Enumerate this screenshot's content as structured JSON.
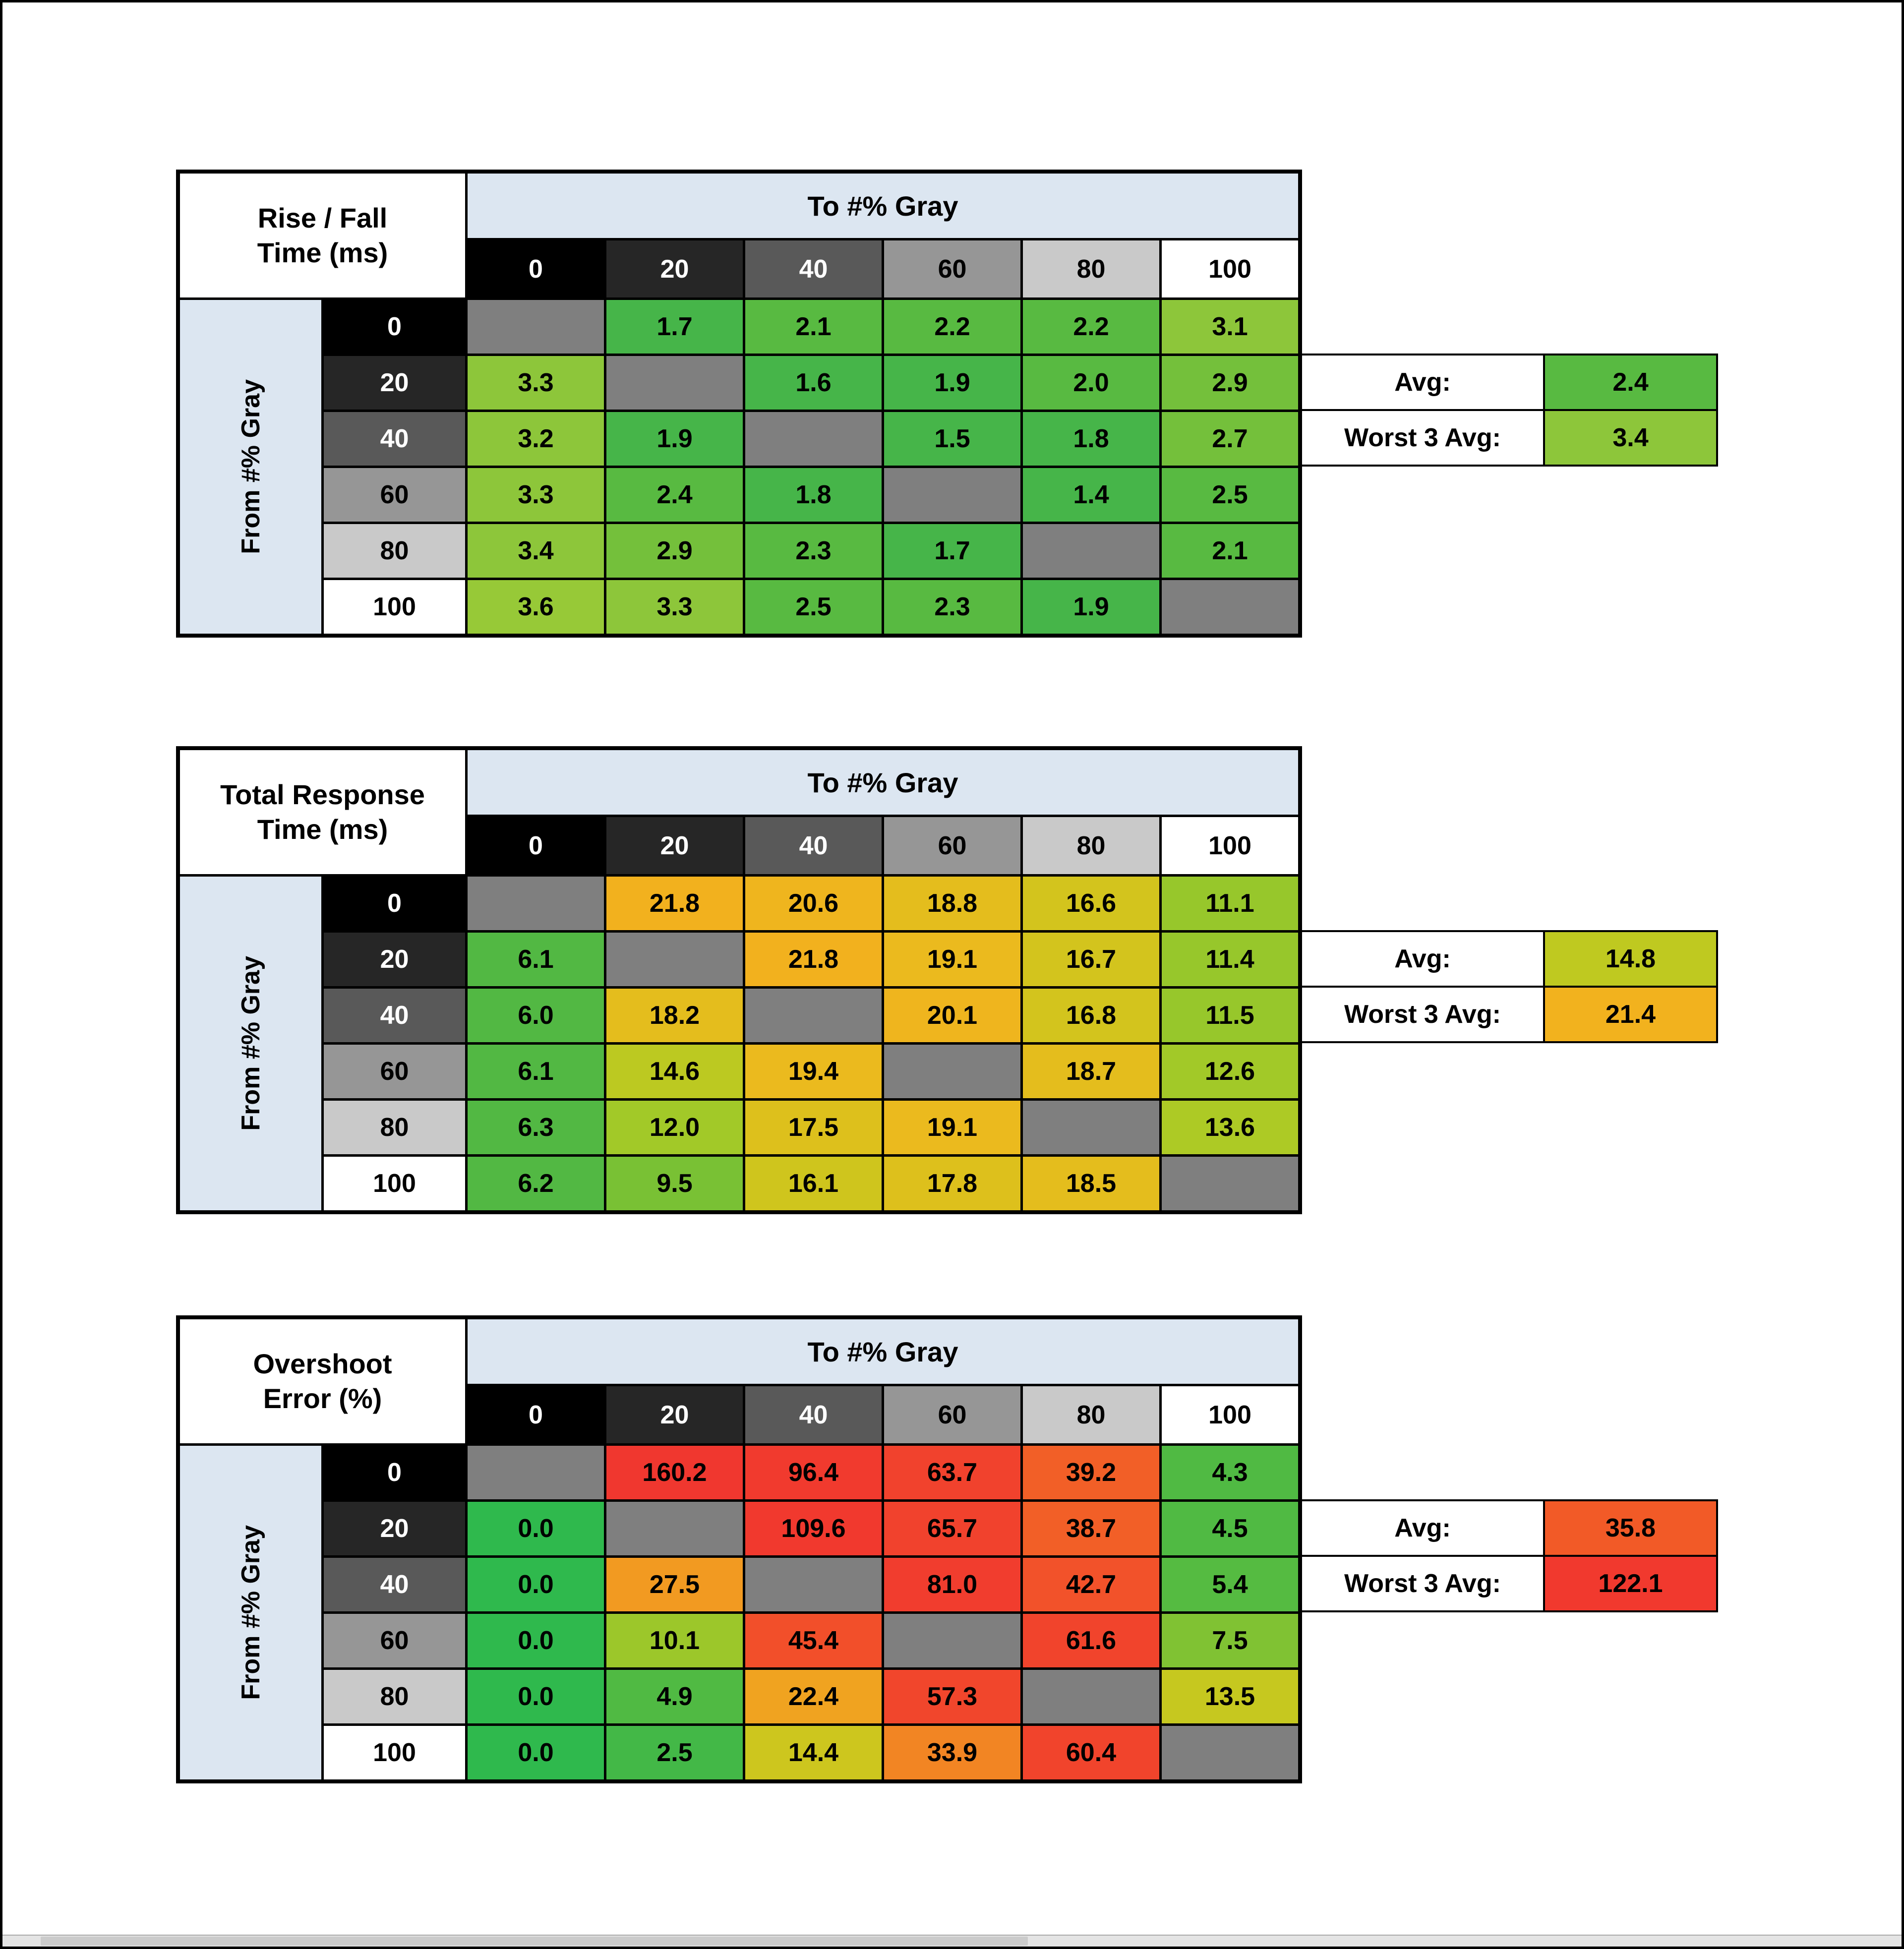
{
  "page": {
    "background": "#ffffff",
    "frame_color": "#000000"
  },
  "shared": {
    "to_axis_label": "To #% Gray",
    "from_axis_label": "From #% Gray",
    "gray_levels": [
      "0",
      "20",
      "40",
      "60",
      "80",
      "100"
    ],
    "level_styles": [
      {
        "bg": "#000000",
        "fg": "#ffffff"
      },
      {
        "bg": "#262626",
        "fg": "#ffffff"
      },
      {
        "bg": "#595959",
        "fg": "#ffffff"
      },
      {
        "bg": "#969696",
        "fg": "#000000"
      },
      {
        "bg": "#c9c9c9",
        "fg": "#000000"
      },
      {
        "bg": "#ffffff",
        "fg": "#000000"
      }
    ],
    "axis_header_bg": "#dce6f1",
    "diagonal_bg": "#7f7f7f",
    "avg_label": "Avg:",
    "worst_label": "Worst 3 Avg:"
  },
  "chart_data": [
    {
      "type": "heatmap",
      "title_line1": "Rise / Fall",
      "title_line2": "Time (ms)",
      "xlabel": "To #% Gray",
      "ylabel": "From #% Gray",
      "columns": [
        "0",
        "20",
        "40",
        "60",
        "80",
        "100"
      ],
      "rows": [
        "0",
        "20",
        "40",
        "60",
        "80",
        "100"
      ],
      "values": [
        [
          null,
          "1.7",
          "2.1",
          "2.2",
          "2.2",
          "3.1"
        ],
        [
          "3.3",
          null,
          "1.6",
          "1.9",
          "2.0",
          "2.9"
        ],
        [
          "3.2",
          "1.9",
          null,
          "1.5",
          "1.8",
          "2.7"
        ],
        [
          "3.3",
          "2.4",
          "1.8",
          null,
          "1.4",
          "2.5"
        ],
        [
          "3.4",
          "2.9",
          "2.3",
          "1.7",
          null,
          "2.1"
        ],
        [
          "3.6",
          "3.3",
          "2.5",
          "2.3",
          "1.9",
          null
        ]
      ],
      "cell_colors": [
        [
          null,
          "#46b549",
          "#58ba41",
          "#58ba41",
          "#58ba41",
          "#8dc63a"
        ],
        [
          "#8dc63a",
          null,
          "#46b549",
          "#46b549",
          "#58ba41",
          "#74c03b"
        ],
        [
          "#8dc63a",
          "#46b549",
          null,
          "#46b549",
          "#46b549",
          "#74c03b"
        ],
        [
          "#8dc63a",
          "#58ba41",
          "#46b549",
          null,
          "#46b549",
          "#58ba41"
        ],
        [
          "#8dc63a",
          "#74c03b",
          "#58ba41",
          "#46b549",
          null,
          "#58ba41"
        ],
        [
          "#97c937",
          "#8dc63a",
          "#58ba41",
          "#58ba41",
          "#46b549",
          null
        ]
      ],
      "avg": {
        "value": "2.4",
        "color": "#58ba41"
      },
      "worst3": {
        "value": "3.4",
        "color": "#8dc63a"
      }
    },
    {
      "type": "heatmap",
      "title_line1": "Total Response",
      "title_line2": "Time (ms)",
      "xlabel": "To #% Gray",
      "ylabel": "From #% Gray",
      "columns": [
        "0",
        "20",
        "40",
        "60",
        "80",
        "100"
      ],
      "rows": [
        "0",
        "20",
        "40",
        "60",
        "80",
        "100"
      ],
      "values": [
        [
          null,
          "21.8",
          "20.6",
          "18.8",
          "16.6",
          "11.1"
        ],
        [
          "6.1",
          null,
          "21.8",
          "19.1",
          "16.7",
          "11.4"
        ],
        [
          "6.0",
          "18.2",
          null,
          "20.1",
          "16.8",
          "11.5"
        ],
        [
          "6.1",
          "14.6",
          "19.4",
          null,
          "18.7",
          "12.6"
        ],
        [
          "6.3",
          "12.0",
          "17.5",
          "19.1",
          null,
          "13.6"
        ],
        [
          "6.2",
          "9.5",
          "16.1",
          "17.8",
          "18.5",
          null
        ]
      ],
      "cell_colors": [
        [
          null,
          "#f2b11e",
          "#efb51e",
          "#e4bd1d",
          "#d3c41d",
          "#97c72b"
        ],
        [
          "#52b843",
          null,
          "#f2b11e",
          "#ebba1e",
          "#d3c41d",
          "#97c72b"
        ],
        [
          "#52b843",
          "#e4bd1d",
          null,
          "#efb51e",
          "#d3c41d",
          "#97c72b"
        ],
        [
          "#52b843",
          "#bcc921",
          "#ebba1e",
          null,
          "#e4bd1d",
          "#a2c928"
        ],
        [
          "#52b843",
          "#a2c928",
          "#ddc01c",
          "#ebba1e",
          null,
          "#adca25"
        ],
        [
          "#52b843",
          "#79c134",
          "#cfc51d",
          "#ddc01c",
          "#e4bd1d",
          null
        ]
      ],
      "avg": {
        "value": "14.8",
        "color": "#bfc920"
      },
      "worst3": {
        "value": "21.4",
        "color": "#f2b21e"
      }
    },
    {
      "type": "heatmap",
      "title_line1": "Overshoot",
      "title_line2": "Error (%)",
      "xlabel": "To #% Gray",
      "ylabel": "From #% Gray",
      "columns": [
        "0",
        "20",
        "40",
        "60",
        "80",
        "100"
      ],
      "rows": [
        "0",
        "20",
        "40",
        "60",
        "80",
        "100"
      ],
      "values": [
        [
          null,
          "160.2",
          "96.4",
          "63.7",
          "39.2",
          "4.3"
        ],
        [
          "0.0",
          null,
          "109.6",
          "65.7",
          "38.7",
          "4.5"
        ],
        [
          "0.0",
          "27.5",
          null,
          "81.0",
          "42.7",
          "5.4"
        ],
        [
          "0.0",
          "10.1",
          "45.4",
          null,
          "61.6",
          "7.5"
        ],
        [
          "0.0",
          "4.9",
          "22.4",
          "57.3",
          null,
          "13.5"
        ],
        [
          "0.0",
          "2.5",
          "14.4",
          "33.9",
          "60.4",
          null
        ]
      ],
      "cell_colors": [
        [
          null,
          "#f0372f",
          "#f13a2e",
          "#f1422d",
          "#f25f27",
          "#50ba43"
        ],
        [
          "#2fb94d",
          null,
          "#f1392e",
          "#f1422d",
          "#f25f27",
          "#50ba43"
        ],
        [
          "#2fb94d",
          "#f29a21",
          null,
          "#f13d2e",
          "#f2522a",
          "#55bb41"
        ],
        [
          "#2fb94d",
          "#9cc72a",
          "#f24f2a",
          null,
          "#f1442c",
          "#80c233"
        ],
        [
          "#2fb94d",
          "#50ba43",
          "#f0a320",
          "#f1462c",
          null,
          "#c6c81f"
        ],
        [
          "#2fb94d",
          "#43b847",
          "#cdc61e",
          "#f28523",
          "#f1442c",
          null
        ]
      ],
      "avg": {
        "value": "35.8",
        "color": "#f25a27"
      },
      "worst3": {
        "value": "122.1",
        "color": "#f1392e"
      }
    }
  ]
}
